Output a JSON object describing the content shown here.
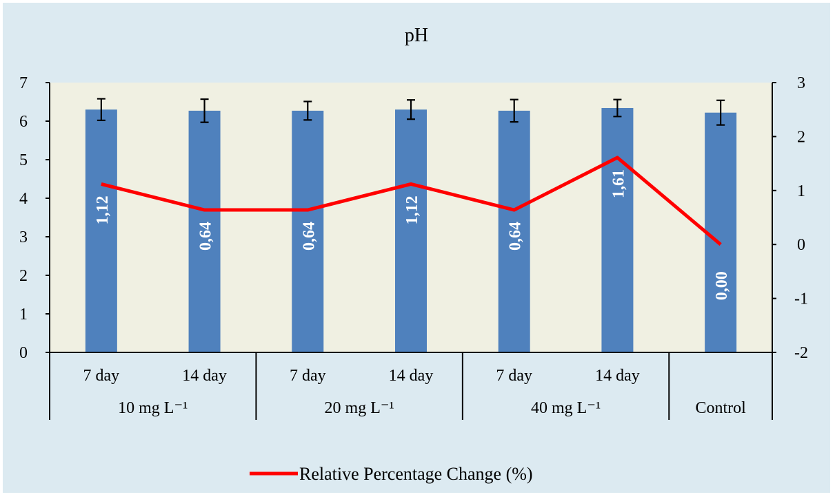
{
  "chart_data": {
    "type": "bar",
    "title": "pH",
    "categories": [
      "7 day",
      "14 day",
      "7 day",
      "14 day",
      "7 day",
      "14 day",
      ""
    ],
    "groups": [
      "10 mg L⁻¹",
      "20 mg L⁻¹",
      "40 mg L⁻¹",
      "Control"
    ],
    "group_spans": [
      2,
      2,
      2,
      1
    ],
    "bar_values": [
      6.3,
      6.27,
      6.27,
      6.3,
      6.27,
      6.34,
      6.22
    ],
    "error_bars": [
      0.28,
      0.3,
      0.24,
      0.25,
      0.29,
      0.22,
      0.32
    ],
    "series": [
      {
        "name": "Relative Percentage Change (%)",
        "axis": "right",
        "values": [
          1.12,
          0.64,
          0.64,
          1.12,
          0.64,
          1.61,
          0.0
        ]
      }
    ],
    "bar_labels": [
      "1,12",
      "0,64",
      "0,64",
      "1,12",
      "0,64",
      "1,61",
      "0,00"
    ],
    "ylim_left": [
      0,
      7
    ],
    "yticks_left": [
      "0",
      "1",
      "2",
      "3",
      "4",
      "5",
      "6",
      "7"
    ],
    "ylim_right": [
      -2,
      3
    ],
    "yticks_right": [
      "-2",
      "-1",
      "0",
      "1",
      "2",
      "3"
    ],
    "legend_position": "bottom",
    "colors": {
      "background": "#dceaf1",
      "plot": "#f0f0e2",
      "bar": "#4f81bd",
      "line": "#ff0000",
      "bar_label": "#ffffff",
      "text": "#000000"
    }
  }
}
